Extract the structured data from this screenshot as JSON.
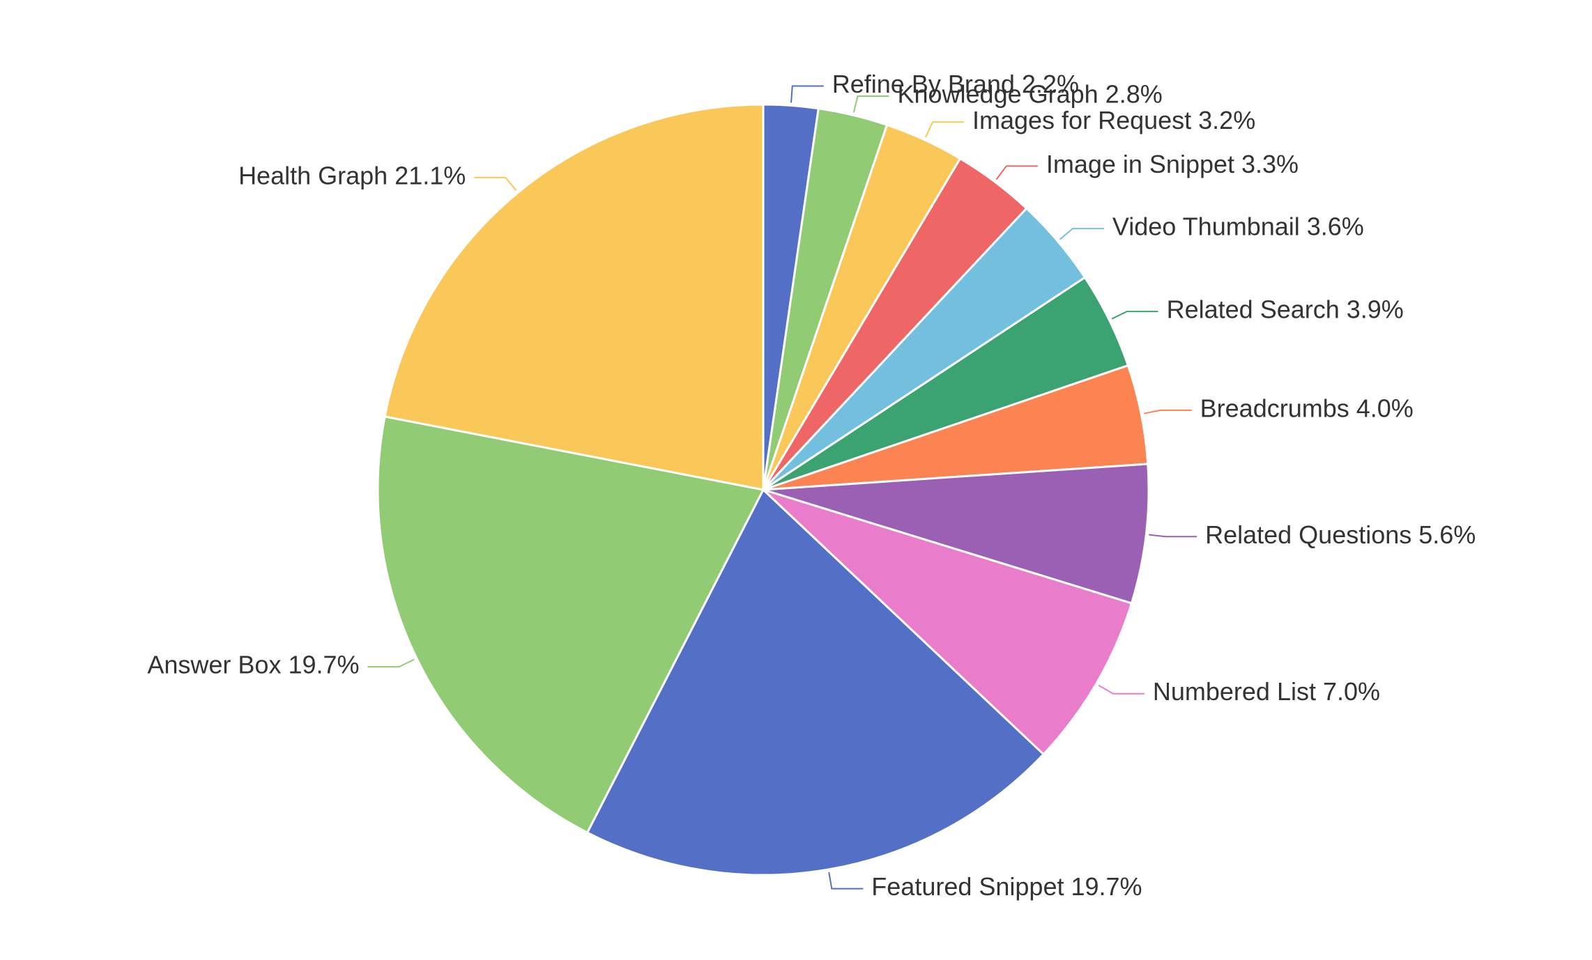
{
  "chart_data": {
    "type": "pie",
    "title": "",
    "legend": "none",
    "label_format": "{name} {percent}%",
    "slices": [
      {
        "name": "Refine By Brand",
        "value": 2.2,
        "label": "Refine By Brand 2.2%",
        "color": "#5470c6"
      },
      {
        "name": "Knowledge Graph",
        "value": 2.8,
        "label": "Knowledge Graph 2.8%",
        "color": "#91cc75"
      },
      {
        "name": "Images for Request",
        "value": 3.2,
        "label": "Images for Request 3.2%",
        "color": "#fac858"
      },
      {
        "name": "Image in Snippet",
        "value": 3.3,
        "label": "Image in Snippet 3.3%",
        "color": "#ee6666"
      },
      {
        "name": "Video Thumbnail",
        "value": 3.6,
        "label": "Video Thumbnail 3.6%",
        "color": "#73c0de"
      },
      {
        "name": "Related Search",
        "value": 3.9,
        "label": "Related Search 3.9%",
        "color": "#3ba272"
      },
      {
        "name": "Breadcrumbs",
        "value": 4.0,
        "label": "Breadcrumbs  4.0%",
        "color": "#fc8452"
      },
      {
        "name": "Related Questions",
        "value": 5.6,
        "label": "Related Questions 5.6%",
        "color": "#9a60b4"
      },
      {
        "name": "Numbered List",
        "value": 7.0,
        "label": "Numbered List 7.0%",
        "color": "#ea7ccc"
      },
      {
        "name": "Featured Snippet",
        "value": 19.7,
        "label": "Featured Snippet 19.7%",
        "color": "#5470c6"
      },
      {
        "name": "Answer Box",
        "value": 19.7,
        "label": "Answer Box 19.7%",
        "color": "#91cc75"
      },
      {
        "name": "Health Graph",
        "value": 21.1,
        "label": "Health Graph 21.1%",
        "color": "#fac858"
      }
    ]
  }
}
